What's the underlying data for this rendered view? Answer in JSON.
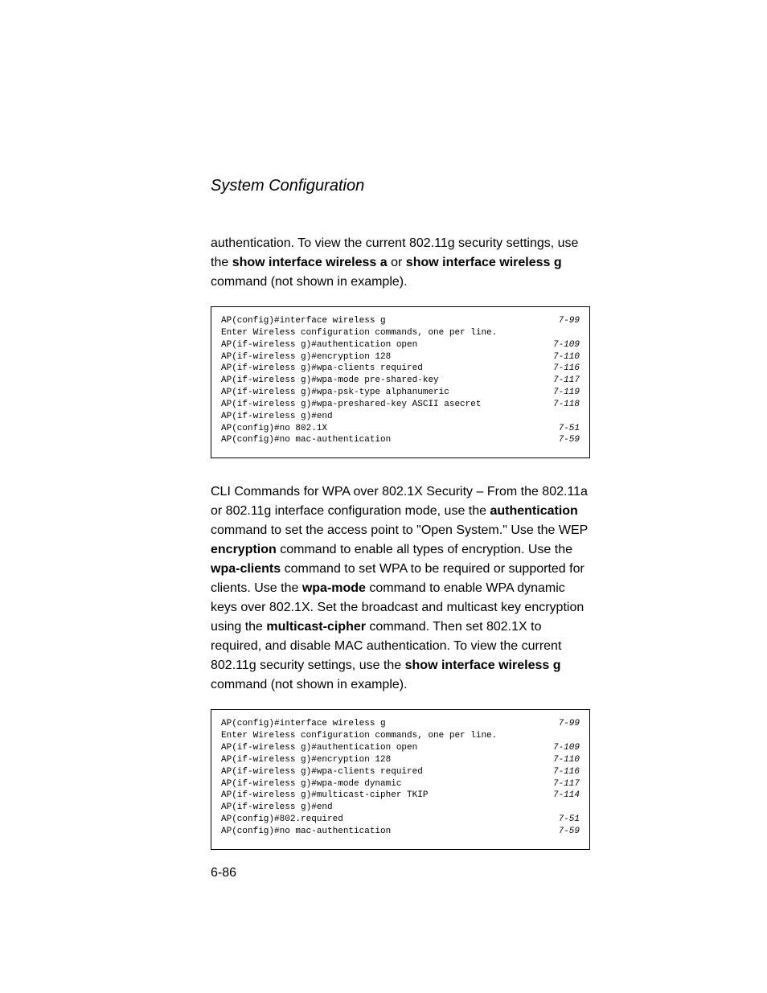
{
  "section_title": "System Configuration",
  "para1": {
    "t1": "authentication. To view the current 802.11g security settings, use the ",
    "b1": "show interface wireless a",
    "t2": " or ",
    "b2": "show interface wireless g",
    "t3": " command (not shown in example)."
  },
  "code1": [
    {
      "cmd": "AP(config)#interface wireless g",
      "ref": "7-99"
    },
    {
      "cmd": "Enter Wireless configuration commands, one per line.",
      "ref": ""
    },
    {
      "cmd": "AP(if-wireless g)#authentication open",
      "ref": "7-109"
    },
    {
      "cmd": "AP(if-wireless g)#encryption 128",
      "ref": "7-110"
    },
    {
      "cmd": "AP(if-wireless g)#wpa-clients required",
      "ref": "7-116"
    },
    {
      "cmd": "AP(if-wireless g)#wpa-mode pre-shared-key",
      "ref": "7-117"
    },
    {
      "cmd": "AP(if-wireless g)#wpa-psk-type alphanumeric",
      "ref": "7-119"
    },
    {
      "cmd": "AP(if-wireless g)#wpa-preshared-key ASCII asecret",
      "ref": "7-118"
    },
    {
      "cmd": "AP(if-wireless g)#end",
      "ref": ""
    },
    {
      "cmd": "AP(config)#no 802.1X",
      "ref": "7-51"
    },
    {
      "cmd": "AP(config)#no mac-authentication",
      "ref": "7-59"
    }
  ],
  "para2": {
    "t1": "CLI Commands for WPA over 802.1X Security – From the 802.11a or 802.11g interface configuration mode, use the ",
    "b1": "authentication",
    "t2": " command to set the access point to \"Open System.\" Use the WEP ",
    "b2": "encryption",
    "t3": " command to enable all types of encryption. Use the ",
    "b3": "wpa-clients",
    "t4": " command to set WPA to be required or supported for clients. Use the ",
    "b4": "wpa-mode",
    "t5": " command to enable WPA dynamic keys over 802.1X. Set the broadcast and multicast key encryption using the ",
    "b5": "multicast-cipher",
    "t6": " command. Then set 802.1X to required, and disable MAC authentication. To view the current 802.11g security settings, use the ",
    "b6": "show interface wireless g",
    "t7": " command (not shown in example)."
  },
  "code2": [
    {
      "cmd": "AP(config)#interface wireless g",
      "ref": "7-99"
    },
    {
      "cmd": "Enter Wireless configuration commands, one per line.",
      "ref": ""
    },
    {
      "cmd": "AP(if-wireless g)#authentication open",
      "ref": "7-109"
    },
    {
      "cmd": "AP(if-wireless g)#encryption 128",
      "ref": "7-110"
    },
    {
      "cmd": "AP(if-wireless g)#wpa-clients required",
      "ref": "7-116"
    },
    {
      "cmd": "AP(if-wireless g)#wpa-mode dynamic",
      "ref": "7-117"
    },
    {
      "cmd": "AP(if-wireless g)#multicast-cipher TKIP",
      "ref": "7-114"
    },
    {
      "cmd": "AP(if-wireless g)#end",
      "ref": ""
    },
    {
      "cmd": "AP(config)#802.required",
      "ref": "7-51"
    },
    {
      "cmd": "AP(config)#no mac-authentication",
      "ref": "7-59"
    }
  ],
  "page_number": "6-86"
}
